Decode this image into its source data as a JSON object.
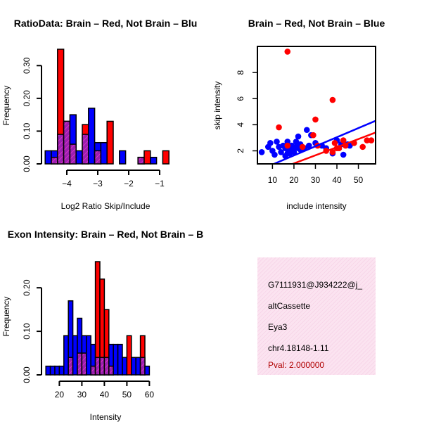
{
  "colors": {
    "brain": "#ff0000",
    "not_brain": "#0000ff",
    "overlap": "#9b1fb0",
    "info_bg": "#f9dcec",
    "pval": "#b00000"
  },
  "chart_data": [
    {
      "type": "bar",
      "id": "ratio",
      "title": "RatioData: Brain – Red, Not Brain – Blu",
      "xlabel": "Log2 Ratio Skip/Include",
      "ylabel": "Frequency",
      "xlim": [
        -4.75,
        -0.75
      ],
      "ylim": [
        0,
        0.35
      ],
      "xticks": [
        -4,
        -3,
        -2,
        -1
      ],
      "yticks": [
        0.0,
        0.1,
        0.2,
        0.3
      ],
      "ytick_labels": [
        "0.00",
        "0.10",
        "0.20",
        "0.30"
      ],
      "bin_start": -4.7,
      "bin_width": 0.2,
      "series": [
        {
          "name": "Not Brain",
          "values": [
            0.04,
            0.04,
            0.09,
            0.13,
            0.15,
            0.04,
            0.09,
            0.17,
            0.065,
            0.065,
            0,
            0,
            0.04,
            0,
            0,
            0.02,
            0,
            0.02,
            0,
            0
          ]
        },
        {
          "name": "Brain",
          "values": [
            0,
            0.02,
            0.35,
            0.13,
            0.06,
            0,
            0.12,
            0,
            0.04,
            0,
            0.13,
            0,
            0,
            0,
            0,
            0.02,
            0.04,
            0,
            0,
            0.04
          ]
        }
      ]
    },
    {
      "type": "scatter",
      "id": "scatter",
      "title": "Brain – Red, Not Brain – Blue",
      "xlabel": "include intensity",
      "ylabel": "skip intensity",
      "xlim": [
        3,
        58
      ],
      "ylim": [
        1,
        10
      ],
      "xticks": [
        10,
        20,
        30,
        40,
        50
      ],
      "yticks": [
        2,
        4,
        6,
        8
      ],
      "series": [
        {
          "name": "Not Brain",
          "points": [
            [
              5,
              1.9
            ],
            [
              8,
              2.3
            ],
            [
              9,
              2.6
            ],
            [
              10,
              2.0
            ],
            [
              11,
              1.7
            ],
            [
              12,
              2.7
            ],
            [
              13,
              2.3
            ],
            [
              14,
              1.9
            ],
            [
              15,
              2.4
            ],
            [
              16,
              1.6
            ],
            [
              16,
              2.2
            ],
            [
              17,
              1.8
            ],
            [
              17,
              2.7
            ],
            [
              18,
              1.8
            ],
            [
              18,
              2.1
            ],
            [
              19,
              2.2
            ],
            [
              19,
              2.4
            ],
            [
              20,
              1.9
            ],
            [
              21,
              2.3
            ],
            [
              21,
              2.7
            ],
            [
              22,
              2.2
            ],
            [
              22,
              3.1
            ],
            [
              23,
              2.5
            ],
            [
              23,
              2.1
            ],
            [
              25,
              2.2
            ],
            [
              26,
              3.6
            ],
            [
              27,
              2.4
            ],
            [
              28,
              3.2
            ],
            [
              30,
              2.6
            ],
            [
              33,
              2.4
            ],
            [
              35,
              2.2
            ],
            [
              38,
              1.8
            ],
            [
              40,
              2.8
            ],
            [
              42,
              2.5
            ],
            [
              43,
              1.7
            ],
            [
              45,
              2.5
            ],
            [
              46,
              2.4
            ]
          ],
          "fit": [
            [
              5,
              0.6
            ],
            [
              58,
              4.3
            ]
          ]
        },
        {
          "name": "Brain",
          "points": [
            [
              13,
              3.8
            ],
            [
              17,
              9.6
            ],
            [
              17,
              2.4
            ],
            [
              24,
              2.3
            ],
            [
              29,
              3.2
            ],
            [
              30,
              4.4
            ],
            [
              31,
              2.4
            ],
            [
              35,
              2.0
            ],
            [
              38,
              5.9
            ],
            [
              38,
              1.9
            ],
            [
              39,
              2.6
            ],
            [
              40,
              2.2
            ],
            [
              41,
              2.2
            ],
            [
              43,
              2.8
            ],
            [
              44,
              2.4
            ],
            [
              48,
              2.6
            ],
            [
              52,
              2.3
            ],
            [
              54,
              2.8
            ],
            [
              56,
              2.8
            ]
          ],
          "fit": [
            [
              5,
              0.1
            ],
            [
              58,
              3.4
            ]
          ]
        }
      ]
    },
    {
      "type": "bar",
      "id": "intensity",
      "title": "Exon Intensity: Brain – Red, Not Brain – B",
      "xlabel": "Intensity",
      "ylabel": "Frequency",
      "xlim": [
        13,
        68
      ],
      "ylim": [
        0,
        0.26
      ],
      "xticks": [
        20,
        30,
        40,
        50,
        60
      ],
      "yticks": [
        0.0,
        0.1,
        0.2
      ],
      "ytick_labels": [
        "0.00",
        "0.10",
        "0.20"
      ],
      "bin_start": 14,
      "bin_width": 2,
      "series": [
        {
          "name": "Not Brain",
          "values": [
            0.02,
            0.02,
            0.02,
            0.02,
            0.09,
            0.17,
            0.09,
            0.13,
            0.09,
            0.09,
            0.07,
            0.04,
            0.04,
            0.04,
            0.07,
            0.07,
            0.07,
            0.04,
            0,
            0.04,
            0.04,
            0.04,
            0.02,
            0,
            0,
            0,
            0,
            0
          ]
        },
        {
          "name": "Brain",
          "values": [
            0,
            0,
            0,
            0,
            0,
            0.04,
            0,
            0.05,
            0.05,
            0,
            0.02,
            0.26,
            0.22,
            0.15,
            0.02,
            0,
            0,
            0,
            0.09,
            0,
            0,
            0.09,
            0,
            0,
            0,
            0,
            0,
            0
          ]
        }
      ]
    }
  ],
  "info_panel": {
    "probe_id": "G7111931@J934222@j_",
    "event_type": "altCassette",
    "gene": "Eya3",
    "location": "chr4.18148-1.11",
    "pval": "Pval: 2.000000"
  }
}
